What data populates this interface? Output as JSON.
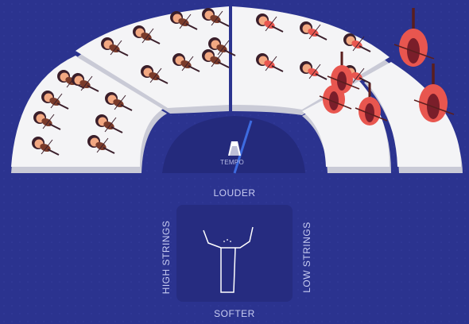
{
  "labels": {
    "louder": "LOUDER",
    "softer": "SOFTER",
    "high_strings": "HIGH STRINGS",
    "low_strings": "LOW STRINGS",
    "tempo": "TEMPO"
  },
  "sections": [
    {
      "name": "second-violins",
      "instrument": "violin-icon",
      "count": 8
    },
    {
      "name": "first-violins",
      "instrument": "violin-icon",
      "count": 8
    },
    {
      "name": "violas",
      "instrument": "viola-icon",
      "count": 6
    },
    {
      "name": "cellos",
      "instrument": "cello-icon",
      "count": 3
    },
    {
      "name": "basses",
      "instrument": "double-bass-icon",
      "count": 2
    }
  ],
  "colors": {
    "background": "#2b338f",
    "stage": "#f4f4f6",
    "stage_edge": "#c9cad6",
    "pad": "#262c80",
    "violin": "#7a3b2a",
    "low_strings": "#e8564f",
    "tempo_needle": "#3d6be0"
  }
}
